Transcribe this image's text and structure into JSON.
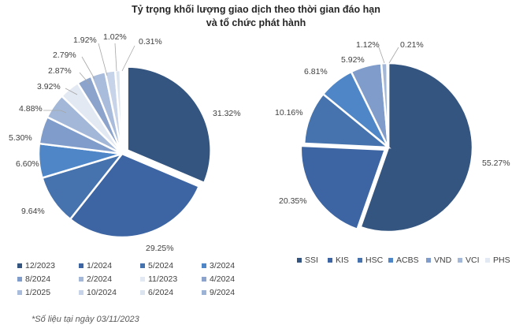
{
  "title_line1": "Tỷ trọng khối lượng giao dịch theo thời gian đáo hạn",
  "title_line2": "và tổ chức phát hành",
  "note": "*Số liệu tại ngày 03/11/2023",
  "chart_data": [
    {
      "type": "pie",
      "slices": [
        {
          "label": "12/2023",
          "value": 31.32,
          "display": "31.32%",
          "color": "#34557F"
        },
        {
          "label": "1/2024",
          "value": 29.25,
          "display": "29.25%",
          "color": "#3D65A3"
        },
        {
          "label": "5/2024",
          "value": 9.64,
          "display": "9.64%",
          "color": "#4673AE"
        },
        {
          "label": "3/2024",
          "value": 6.6,
          "display": "6.60%",
          "color": "#4E86C7"
        },
        {
          "label": "8/2024",
          "value": 5.3,
          "display": "5.30%",
          "color": "#7F9CCA"
        },
        {
          "label": "2/2024",
          "value": 4.88,
          "display": "4.88%",
          "color": "#A3B8D9"
        },
        {
          "label": "11/2023",
          "value": 3.92,
          "display": "3.92%",
          "color": "#E3E9F3"
        },
        {
          "label": "4/2024",
          "value": 2.87,
          "display": "2.87%",
          "color": "#8CA3CB"
        },
        {
          "label": "1/2025",
          "value": 2.79,
          "display": "2.79%",
          "color": "#A9BCDC"
        },
        {
          "label": "10/2024",
          "value": 1.92,
          "display": "1.92%",
          "color": "#C7D3E8"
        },
        {
          "label": "6/2024",
          "value": 1.02,
          "display": "1.02%",
          "color": "#DCE4F0"
        },
        {
          "label": "9/2024",
          "value": 0.31,
          "display": "0.31%",
          "color": "#9DB3D6"
        }
      ]
    },
    {
      "type": "pie",
      "slices": [
        {
          "label": "SSI",
          "value": 55.27,
          "display": "55.27%",
          "color": "#34557F"
        },
        {
          "label": "KIS",
          "value": 20.35,
          "display": "20.35%",
          "color": "#3D65A3"
        },
        {
          "label": "HSC",
          "value": 10.16,
          "display": "10.16%",
          "color": "#4673AE"
        },
        {
          "label": "ACBS",
          "value": 6.81,
          "display": "6.81%",
          "color": "#4E86C7"
        },
        {
          "label": "VND",
          "value": 5.92,
          "display": "5.92%",
          "color": "#7F9CCA"
        },
        {
          "label": "VCI",
          "value": 1.12,
          "display": "1.12%",
          "color": "#A3B8D9"
        },
        {
          "label": "PHS",
          "value": 0.21,
          "display": "0.21%",
          "color": "#E3E9F3"
        }
      ]
    }
  ]
}
